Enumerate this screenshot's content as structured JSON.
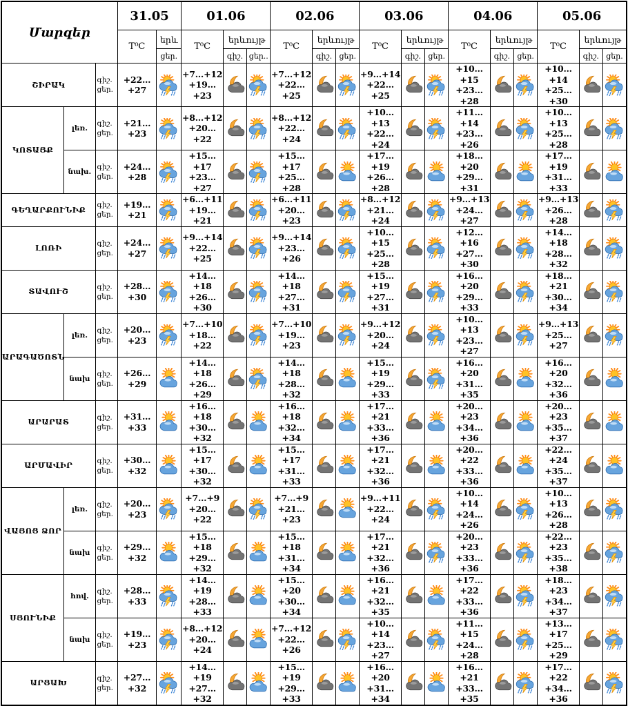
{
  "title": "Մարզեր",
  "labels": {
    "temp": "T⁰C",
    "phenomenon": "երևույթ",
    "night": "գիշ.",
    "day": "ցեր."
  },
  "dates": [
    {
      "label": "31.05",
      "phen_top": "երև",
      "phen_bottom": "ցեր."
    },
    {
      "label": "01.06",
      "night_label": "գիշ.",
      "day_label": "ցեր.."
    },
    {
      "label": "02.06",
      "night_label": "գիշ.",
      "day_label": "ցեր."
    },
    {
      "label": "03.06",
      "night_label": "գիշ.",
      "day_label": "ցեր."
    },
    {
      "label": "04.06",
      "night_label": "գիշ.",
      "day_label": "ցեր."
    },
    {
      "label": "05.06",
      "night_label": "գիշ.",
      "day_label": "ցեր."
    }
  ],
  "icon_legend": {
    "storm": "sun-cloud-thunderstorm-icon",
    "partly": "sun-cloud-icon",
    "night": "moon-cloud-icon"
  },
  "colors": {
    "border": "#000000",
    "background": "#ffffff",
    "cloud_day": "#67a4de",
    "cloud_night": "#747474",
    "sun": "#ffc226",
    "moon": "#f6a733",
    "lightning": "#ffcf3f",
    "rain": "#3f87d6"
  },
  "groups": [
    {
      "name": "ՇԻՐԱԿ",
      "rows": [
        {
          "sub": "",
          "d31": {
            "temp": "+22…+27",
            "icon": "storm"
          },
          "days": [
            {
              "night": "+7…+12",
              "day": "+19…+23",
              "icons": [
                "night",
                "storm"
              ]
            },
            {
              "night": "+7…+12",
              "day": "+22…+25",
              "icons": [
                "night",
                "storm"
              ]
            },
            {
              "night": "+9…+14",
              "day": "+22…+25",
              "icons": [
                "night",
                "storm"
              ]
            },
            {
              "night": "+10…+15",
              "day": "+23…+28",
              "icons": [
                "night",
                "storm"
              ]
            },
            {
              "night": "+10…+14",
              "day": "+25…+30",
              "icons": [
                "night",
                "storm"
              ]
            }
          ]
        }
      ]
    },
    {
      "name": "ԿՈՏԱՅՔ",
      "rows": [
        {
          "sub": "լեռ.",
          "d31": {
            "temp": "+21…+23",
            "icon": "storm"
          },
          "days": [
            {
              "night": "+8…+12",
              "day": "+20…+22",
              "icons": [
                "night",
                "storm"
              ]
            },
            {
              "night": "+8…+12",
              "day": "+22…+24",
              "icons": [
                "night",
                "storm"
              ]
            },
            {
              "night": "+10…+13",
              "day": "+22…+24",
              "icons": [
                "night",
                "storm"
              ]
            },
            {
              "night": "+11…+14",
              "day": "+23…+26",
              "icons": [
                "night",
                "storm"
              ]
            },
            {
              "night": "+10…+13",
              "day": "+25…+28",
              "icons": [
                "night",
                "storm"
              ]
            }
          ]
        },
        {
          "sub": "նախ.",
          "d31": {
            "temp": "+24…+28",
            "icon": "storm"
          },
          "days": [
            {
              "night": "+15…+17",
              "day": "+23…+27",
              "icons": [
                "night",
                "storm"
              ]
            },
            {
              "night": "+15…+17",
              "day": "+25…+28",
              "icons": [
                "night",
                "partly"
              ]
            },
            {
              "night": "+17…+19",
              "day": "+26…+28",
              "icons": [
                "night",
                "partly"
              ]
            },
            {
              "night": "+18…+20",
              "day": "+29…+31",
              "icons": [
                "night",
                "partly"
              ]
            },
            {
              "night": "+17…+19",
              "day": "+31…+33",
              "icons": [
                "night",
                "partly"
              ]
            }
          ]
        }
      ]
    },
    {
      "name": "ԳԵՂԱՐՔՈՒՆԻՔ",
      "rows": [
        {
          "sub": "",
          "d31": {
            "temp": "+19…+21",
            "icon": "storm"
          },
          "days": [
            {
              "night": "+6…+11",
              "day": "+19…+21",
              "icons": [
                "night",
                "storm"
              ]
            },
            {
              "night": "+6…+11",
              "day": "+20…+23",
              "icons": [
                "night",
                "storm"
              ]
            },
            {
              "night": "+8…+12",
              "day": "+21…+24",
              "icons": [
                "night",
                "storm"
              ]
            },
            {
              "night": "+9…+13",
              "day": "+24…+27",
              "icons": [
                "night",
                "storm"
              ]
            },
            {
              "night": "+9…+13",
              "day": "+26…+28",
              "icons": [
                "night",
                "storm"
              ]
            }
          ]
        }
      ]
    },
    {
      "name": "ԼՈՌԻ",
      "rows": [
        {
          "sub": "",
          "d31": {
            "temp": "+24…+27",
            "icon": "storm"
          },
          "days": [
            {
              "night": "+9…+14",
              "day": "+22…+25",
              "icons": [
                "night",
                "storm"
              ]
            },
            {
              "night": "+9…+14",
              "day": "+23…+26",
              "icons": [
                "night",
                "storm"
              ]
            },
            {
              "night": "+10…+15",
              "day": "+25…+28",
              "icons": [
                "night",
                "storm"
              ]
            },
            {
              "night": "+12…+16",
              "day": "+27…+30",
              "icons": [
                "night",
                "storm"
              ]
            },
            {
              "night": "+14…+18",
              "day": "+28…+32",
              "icons": [
                "night",
                "storm"
              ]
            }
          ]
        }
      ]
    },
    {
      "name": "ՏԱՎՈՒՇ",
      "rows": [
        {
          "sub": "",
          "d31": {
            "temp": "+28…+30",
            "icon": "storm"
          },
          "days": [
            {
              "night": "+14…+18",
              "day": "+26…+30",
              "icons": [
                "night",
                "storm"
              ]
            },
            {
              "night": "+14…+18",
              "day": "+27…+31",
              "icons": [
                "night",
                "storm"
              ]
            },
            {
              "night": "+15…+19",
              "day": "+27…+31",
              "icons": [
                "night",
                "storm"
              ]
            },
            {
              "night": "+16…+20",
              "day": "+29…+33",
              "icons": [
                "night",
                "storm"
              ]
            },
            {
              "night": "+18…+21",
              "day": "+30…+34",
              "icons": [
                "night",
                "storm"
              ]
            }
          ]
        }
      ]
    },
    {
      "name": "ԱՐԱԳԱԾՈՏՆ",
      "rows": [
        {
          "sub": "լեռ.",
          "d31": {
            "temp": "+20…+23",
            "icon": "storm"
          },
          "days": [
            {
              "night": "+7…+10",
              "day": "+18…+22",
              "icons": [
                "night",
                "storm"
              ]
            },
            {
              "night": "+7…+10",
              "day": "+19…+23",
              "icons": [
                "night",
                "storm"
              ]
            },
            {
              "night": "+9…+12",
              "day": "+20…+24",
              "icons": [
                "night",
                "storm"
              ]
            },
            {
              "night": "+10…+13",
              "day": "+23…+27",
              "icons": [
                "night",
                "storm"
              ]
            },
            {
              "night": "+9…+13",
              "day": "+25…+27",
              "icons": [
                "night",
                "storm"
              ]
            }
          ]
        },
        {
          "sub": "նախ",
          "d31": {
            "temp": "+26…+29",
            "icon": "partly"
          },
          "days": [
            {
              "night": "+14…+18",
              "day": "+26…+29",
              "icons": [
                "night",
                "storm"
              ]
            },
            {
              "night": "+14…+18",
              "day": "+28…+32",
              "icons": [
                "night",
                "partly"
              ]
            },
            {
              "night": "+15…+19",
              "day": "+29…+33",
              "icons": [
                "night",
                "storm"
              ]
            },
            {
              "night": "+16…+20",
              "day": "+31…+35",
              "icons": [
                "night",
                "partly"
              ]
            },
            {
              "night": "+16…+20",
              "day": "+32…+36",
              "icons": [
                "night",
                "partly"
              ]
            }
          ]
        }
      ]
    },
    {
      "name": "ԱՐԱՐԱՏ",
      "rows": [
        {
          "sub": "",
          "d31": {
            "temp": "+31…+33",
            "icon": "partly"
          },
          "days": [
            {
              "night": "+16…+18",
              "day": "+30…+32",
              "icons": [
                "night",
                "partly"
              ]
            },
            {
              "night": "+16…+18",
              "day": "+32…+34",
              "icons": [
                "night",
                "partly"
              ]
            },
            {
              "night": "+17…+21",
              "day": "+33…+36",
              "icons": [
                "night",
                "partly"
              ]
            },
            {
              "night": "+20…+23",
              "day": "+34…+36",
              "icons": [
                "night",
                "partly"
              ]
            },
            {
              "night": "+20…+23",
              "day": "+35…+37",
              "icons": [
                "night",
                "partly"
              ]
            }
          ]
        }
      ]
    },
    {
      "name": "ԱՐՄԱՎԻՐ",
      "rows": [
        {
          "sub": "",
          "d31": {
            "temp": "+30…+32",
            "icon": "partly"
          },
          "days": [
            {
              "night": "+15…+17",
              "day": "+30…+32",
              "icons": [
                "night",
                "partly"
              ]
            },
            {
              "night": "+15…+17",
              "day": "+31…+33",
              "icons": [
                "night",
                "partly"
              ]
            },
            {
              "night": "+17…+21",
              "day": "+32…+36",
              "icons": [
                "night",
                "partly"
              ]
            },
            {
              "night": "+20…+22",
              "day": "+33…+36",
              "icons": [
                "night",
                "partly"
              ]
            },
            {
              "night": "+22…+24",
              "day": "+35…+37",
              "icons": [
                "night",
                "partly"
              ]
            }
          ]
        }
      ]
    },
    {
      "name": "ՎԱՅՈՑ ՁՈՐ",
      "rows": [
        {
          "sub": "լեռ.",
          "d31": {
            "temp": "+20…+23",
            "icon": "storm"
          },
          "days": [
            {
              "night": "+7…+9",
              "day": "+20…+22",
              "icons": [
                "night",
                "storm"
              ]
            },
            {
              "night": "+7…+9",
              "day": "+21…+23",
              "icons": [
                "night",
                "partly"
              ]
            },
            {
              "night": "+9…+11",
              "day": "+22…+24",
              "icons": [
                "night",
                "storm"
              ]
            },
            {
              "night": "+10…+14",
              "day": "+24…+26",
              "icons": [
                "night",
                "storm"
              ]
            },
            {
              "night": "+10…+13",
              "day": "+26…+28",
              "icons": [
                "night",
                "storm"
              ]
            }
          ]
        },
        {
          "sub": "նախ",
          "d31": {
            "temp": "+29…+32",
            "icon": "partly"
          },
          "days": [
            {
              "night": "+15…+18",
              "day": "+29…+32",
              "icons": [
                "night",
                "partly"
              ]
            },
            {
              "night": "+15…+18",
              "day": "+31…+34",
              "icons": [
                "night",
                "partly"
              ]
            },
            {
              "night": "+17…+21",
              "day": "+32…+36",
              "icons": [
                "night",
                "storm"
              ]
            },
            {
              "night": "+20…+23",
              "day": "+33…+36",
              "icons": [
                "night",
                "storm"
              ]
            },
            {
              "night": "+22…+23",
              "day": "+35…+38",
              "icons": [
                "night",
                "storm"
              ]
            }
          ]
        }
      ]
    },
    {
      "name": "ՍՅՈՒՆԻՔ",
      "rows": [
        {
          "sub": "հով.",
          "d31": {
            "temp": "+28…+33",
            "icon": "storm"
          },
          "days": [
            {
              "night": "+14…+19",
              "day": "+28…+33",
              "icons": [
                "night",
                "partly"
              ]
            },
            {
              "night": "+15…+20",
              "day": "+30…+34",
              "icons": [
                "night",
                "partly"
              ]
            },
            {
              "night": "+16…+21",
              "day": "+32…+35",
              "icons": [
                "night",
                "partly"
              ]
            },
            {
              "night": "+17…+22",
              "day": "+33…+36",
              "icons": [
                "night",
                "storm"
              ]
            },
            {
              "night": "+18…+23",
              "day": "+34…+37",
              "icons": [
                "night",
                "storm"
              ]
            }
          ]
        },
        {
          "sub": "նախ",
          "d31": {
            "temp": "+19…+23",
            "icon": "storm"
          },
          "days": [
            {
              "night": "+8…+12",
              "day": "+20…+24",
              "icons": [
                "night",
                "partly"
              ]
            },
            {
              "night": "+7…+12",
              "day": "+22…+26",
              "icons": [
                "night",
                "storm"
              ]
            },
            {
              "night": "+10…+14",
              "day": "+23…+27",
              "icons": [
                "night",
                "storm"
              ]
            },
            {
              "night": "+11…+15",
              "day": "+24…+28",
              "icons": [
                "night",
                "storm"
              ]
            },
            {
              "night": "+13…+17",
              "day": "+25…+29",
              "icons": [
                "night",
                "storm"
              ]
            }
          ]
        }
      ]
    },
    {
      "name": "ԱՐՑԱԽ",
      "rows": [
        {
          "sub": "",
          "d31": {
            "temp": "+27…+32",
            "icon": "storm"
          },
          "days": [
            {
              "night": "+14…+19",
              "day": "+27…+32",
              "icons": [
                "night",
                "partly"
              ]
            },
            {
              "night": "+15…+19",
              "day": "+29…+33",
              "icons": [
                "night",
                "partly"
              ]
            },
            {
              "night": "+16…+20",
              "day": "+31…+34",
              "icons": [
                "night",
                "partly"
              ]
            },
            {
              "night": "+16…+21",
              "day": "+33…+35",
              "icons": [
                "night",
                "storm"
              ]
            },
            {
              "night": "+17…+22",
              "day": "+34…+36",
              "icons": [
                "night",
                "storm"
              ]
            }
          ]
        }
      ]
    }
  ]
}
